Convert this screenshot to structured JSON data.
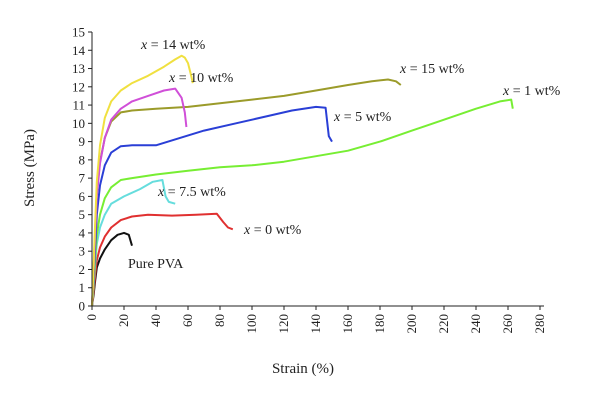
{
  "chart_data": {
    "type": "line",
    "xlabel": "Strain (%)",
    "ylabel": "Stress (MPa)",
    "xlim": [
      0,
      280
    ],
    "ylim": [
      0,
      15
    ],
    "xticks": [
      0,
      20,
      40,
      60,
      80,
      100,
      120,
      140,
      160,
      180,
      200,
      220,
      240,
      260,
      280
    ],
    "yticks": [
      0,
      1,
      2,
      3,
      4,
      5,
      6,
      7,
      8,
      9,
      10,
      11,
      12,
      13,
      14,
      15
    ],
    "grid": false,
    "series": [
      {
        "name": "Pure PVA",
        "label_parts": [
          "",
          "",
          "Pure PVA"
        ],
        "color": "#111111",
        "x": [
          0,
          1,
          2,
          3,
          5,
          8,
          12,
          16,
          20,
          23,
          25
        ],
        "y": [
          0,
          0.6,
          1.4,
          2.1,
          2.6,
          3.1,
          3.6,
          3.9,
          4.0,
          3.9,
          3.3
        ]
      },
      {
        "name": "x = 0 wt%",
        "label_parts": [
          "x",
          " = ",
          "0 wt%"
        ],
        "color": "#e03030",
        "x": [
          0,
          1,
          2,
          3,
          5,
          8,
          12,
          18,
          25,
          35,
          50,
          65,
          78,
          82,
          85,
          88
        ],
        "y": [
          0,
          0.8,
          1.7,
          2.5,
          3.2,
          3.8,
          4.3,
          4.7,
          4.9,
          5.0,
          4.95,
          5.0,
          5.05,
          4.6,
          4.3,
          4.2
        ]
      },
      {
        "name": "x = 7.5 wt%",
        "label_parts": [
          "x",
          " = ",
          "7.5 wt%"
        ],
        "color": "#66dddd",
        "x": [
          0,
          1,
          2,
          3,
          5,
          8,
          12,
          20,
          30,
          38,
          44,
          46,
          48,
          52
        ],
        "y": [
          0,
          1.1,
          2.3,
          3.4,
          4.3,
          5.0,
          5.6,
          6.0,
          6.4,
          6.8,
          6.9,
          6.0,
          5.7,
          5.6
        ]
      },
      {
        "name": "x = 1 wt%",
        "label_parts": [
          "x",
          " = ",
          "1 wt%"
        ],
        "color": "#77ee33",
        "x": [
          0,
          1,
          2,
          3,
          5,
          8,
          12,
          18,
          25,
          40,
          60,
          80,
          100,
          120,
          140,
          160,
          180,
          200,
          220,
          240,
          255,
          262,
          263
        ],
        "y": [
          0,
          1.2,
          2.6,
          3.9,
          5.0,
          5.9,
          6.5,
          6.9,
          7.0,
          7.2,
          7.4,
          7.6,
          7.7,
          7.9,
          8.2,
          8.5,
          9.0,
          9.6,
          10.2,
          10.8,
          11.2,
          11.3,
          10.8
        ]
      },
      {
        "name": "x = 5 wt%",
        "label_parts": [
          "x",
          " = ",
          "5 wt%"
        ],
        "color": "#2a3fd6",
        "x": [
          0,
          1,
          2,
          3,
          5,
          8,
          12,
          18,
          25,
          40,
          55,
          70,
          90,
          110,
          125,
          140,
          146,
          148,
          150
        ],
        "y": [
          0,
          1.5,
          3.2,
          5.0,
          6.6,
          7.7,
          8.4,
          8.75,
          8.8,
          8.8,
          9.2,
          9.6,
          10.0,
          10.4,
          10.7,
          10.9,
          10.85,
          9.3,
          9.0
        ]
      },
      {
        "name": "x = 15 wt%",
        "label_parts": [
          "x",
          " = ",
          "15 wt%"
        ],
        "color": "#9b9b2a",
        "x": [
          0,
          1,
          2,
          3,
          5,
          8,
          12,
          18,
          25,
          40,
          60,
          80,
          100,
          120,
          140,
          160,
          175,
          185,
          190,
          193
        ],
        "y": [
          0,
          2.0,
          4.2,
          6.2,
          7.9,
          9.2,
          10.1,
          10.6,
          10.7,
          10.8,
          10.9,
          11.1,
          11.3,
          11.5,
          11.8,
          12.1,
          12.3,
          12.4,
          12.3,
          12.1
        ]
      },
      {
        "name": "x = 10 wt%",
        "label_parts": [
          "x",
          " = ",
          "10 wt%"
        ],
        "color": "#d04fd8",
        "x": [
          0,
          1,
          2,
          3,
          5,
          8,
          12,
          18,
          25,
          35,
          45,
          52,
          56,
          58,
          59
        ],
        "y": [
          0,
          1.9,
          4.0,
          6.0,
          7.8,
          9.2,
          10.2,
          10.8,
          11.2,
          11.5,
          11.8,
          11.9,
          11.4,
          10.6,
          9.8
        ]
      },
      {
        "name": "x = 14 wt%",
        "label_parts": [
          "x",
          " = ",
          "14 wt%"
        ],
        "color": "#f0e040",
        "x": [
          0,
          1,
          2,
          3,
          5,
          8,
          12,
          18,
          25,
          35,
          45,
          52,
          56,
          58,
          60,
          62,
          63
        ],
        "y": [
          0,
          2.2,
          4.6,
          6.8,
          8.8,
          10.3,
          11.2,
          11.8,
          12.2,
          12.6,
          13.1,
          13.5,
          13.7,
          13.6,
          13.3,
          12.6,
          12.2
        ]
      }
    ]
  }
}
